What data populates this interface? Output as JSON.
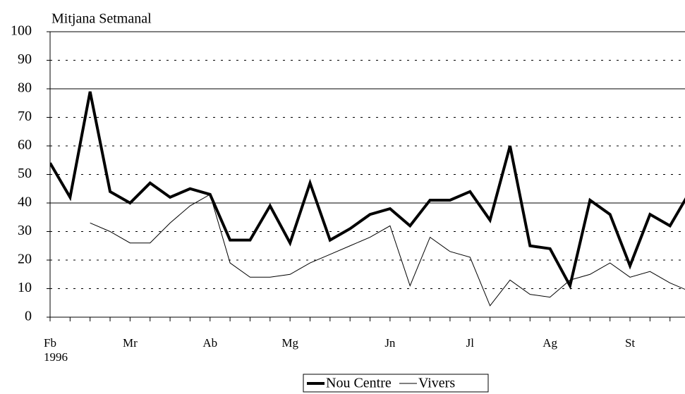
{
  "chart_data": {
    "type": "line",
    "title": "Mitjana Setmanal",
    "categories": [
      "Fb",
      null,
      null,
      null,
      "Mr",
      null,
      null,
      null,
      "Ab",
      null,
      null,
      null,
      "Mg",
      null,
      null,
      null,
      null,
      "Jn",
      null,
      null,
      null,
      "Jl",
      null,
      null,
      null,
      "Ag",
      null,
      null,
      null,
      "St",
      null,
      null,
      null
    ],
    "year_label": "1996",
    "series": [
      {
        "name": "Nou Centre",
        "color": "#000000",
        "width": 4,
        "values": [
          54,
          42,
          79,
          44,
          40,
          47,
          42,
          45,
          43,
          27,
          27,
          39,
          26,
          47,
          27,
          31,
          36,
          38,
          32,
          41,
          41,
          44,
          34,
          60,
          25,
          24,
          11,
          41,
          36,
          18,
          36,
          32,
          44
        ]
      },
      {
        "name": "Vivers",
        "color": "#000000",
        "width": 1,
        "values": [
          null,
          null,
          33,
          30,
          26,
          26,
          33,
          39,
          43,
          19,
          14,
          14,
          15,
          19,
          22,
          25,
          28,
          32,
          11,
          28,
          23,
          21,
          4,
          13,
          8,
          7,
          13,
          15,
          19,
          14,
          16,
          12,
          9
        ]
      }
    ],
    "xlim": [
      0,
      31.75
    ],
    "ylim": [
      0,
      100
    ],
    "yticks": [
      0,
      10,
      20,
      30,
      40,
      50,
      60,
      70,
      80,
      90,
      100
    ],
    "grid": true,
    "solid_gridlines": [
      40,
      80,
      100
    ],
    "legend": "bottom"
  }
}
